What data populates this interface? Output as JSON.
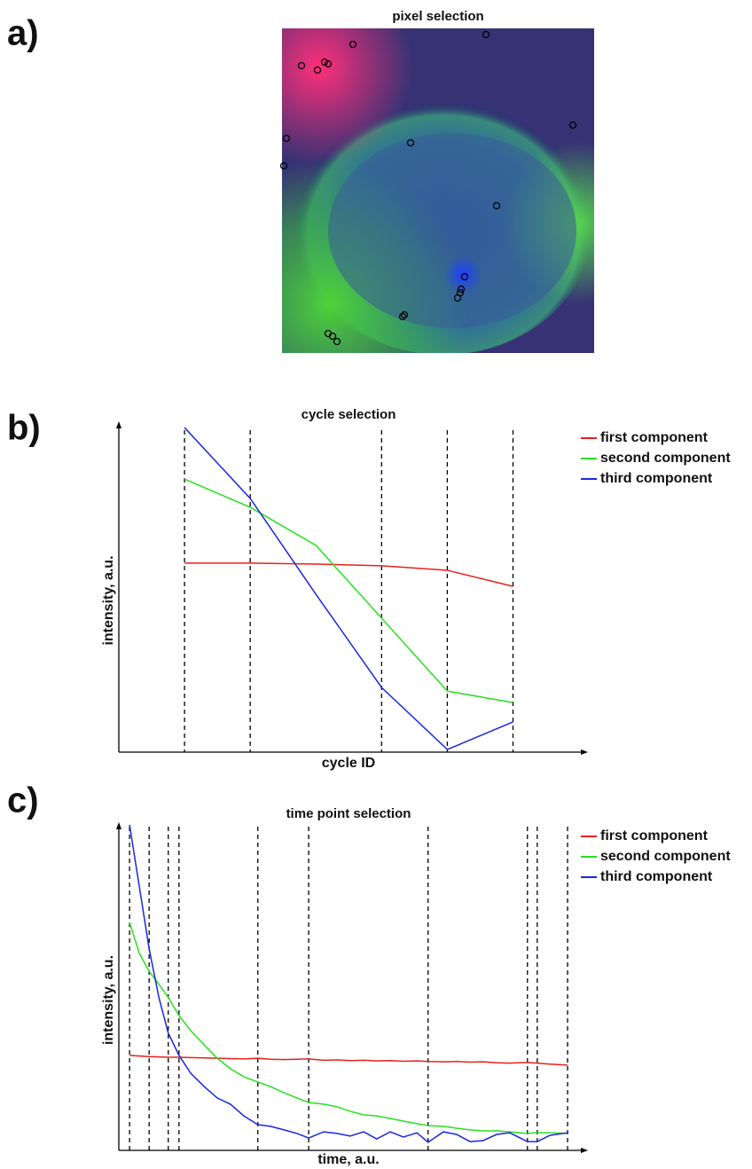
{
  "chart_data": [
    {
      "type": "scatter",
      "panel_label": "a)",
      "title": "pixel selection",
      "x": [
        22,
        40,
        48,
        52,
        80,
        230,
        328,
        5,
        2,
        145,
        242,
        206,
        202,
        201,
        198,
        138,
        136,
        52,
        57,
        62
      ],
      "y": [
        42,
        47,
        38,
        40,
        18,
        7,
        109,
        124,
        155,
        129,
        200,
        280,
        294,
        298,
        304,
        323,
        325,
        344,
        347,
        353
      ],
      "color": "#000000",
      "xlim": [
        0,
        352
      ],
      "ylim": [
        366,
        0
      ]
    },
    {
      "type": "line",
      "panel_label": "b)",
      "title": "cycle selection",
      "x_label": "cycle ID",
      "y_label": "intensity, a.u.",
      "x": [
        1,
        2,
        3,
        4,
        5,
        6
      ],
      "series": [
        {
          "name": "first component",
          "color": "#e8201c",
          "values": [
            0.576,
            0.576,
            0.573,
            0.568,
            0.554,
            0.505
          ]
        },
        {
          "name": "second component",
          "color": "#27e01f",
          "values": [
            0.832,
            0.746,
            0.63,
            0.408,
            0.186,
            0.151
          ]
        },
        {
          "name": "third component",
          "color": "#1a26e0",
          "values": [
            0.989,
            0.773,
            0.481,
            0.197,
            0.008,
            0.092
          ]
        }
      ],
      "selected": [
        1,
        2,
        4,
        5,
        6
      ],
      "xlim": [
        0,
        7.1
      ],
      "ylim": [
        0,
        1
      ],
      "legend": "right"
    },
    {
      "type": "line",
      "panel_label": "c)",
      "title": "time point selection",
      "x_label": "time, a.u.",
      "y_label": "intensity, a.u.",
      "x": [
        2.3,
        4.4,
        6.5,
        8.6,
        10.6,
        12.9,
        15.4,
        18.3,
        21.1,
        23.9,
        26.8,
        29.8,
        32.5,
        35.4,
        38.2,
        40.7,
        43.9,
        46.8,
        49.6,
        52.5,
        55.3,
        58.2,
        61.0,
        63.9,
        66.3,
        69.6,
        72.4,
        75.3,
        78.1,
        81.0,
        83.8,
        87.6,
        89.7,
        92.4,
        96.2
      ],
      "series": [
        {
          "name": "first component",
          "color": "#e8201c",
          "values": [
            0.292,
            0.29,
            0.288,
            0.287,
            0.286,
            0.286,
            0.285,
            0.284,
            0.283,
            0.282,
            0.281,
            0.283,
            0.28,
            0.279,
            0.28,
            0.281,
            0.277,
            0.278,
            0.276,
            0.277,
            0.275,
            0.276,
            0.274,
            0.275,
            0.273,
            0.272,
            0.273,
            0.271,
            0.272,
            0.269,
            0.268,
            0.27,
            0.268,
            0.265,
            0.262
          ]
        },
        {
          "name": "second component",
          "color": "#27e01f",
          "values": [
            0.7,
            0.605,
            0.55,
            0.51,
            0.47,
            0.414,
            0.368,
            0.324,
            0.283,
            0.251,
            0.226,
            0.21,
            0.196,
            0.177,
            0.161,
            0.147,
            0.142,
            0.134,
            0.12,
            0.109,
            0.106,
            0.098,
            0.09,
            0.082,
            0.076,
            0.074,
            0.068,
            0.063,
            0.06,
            0.06,
            0.057,
            0.052,
            0.054,
            0.054,
            0.052
          ]
        },
        {
          "name": "third component",
          "color": "#1a26e0",
          "values": [
            1.0,
            0.81,
            0.619,
            0.469,
            0.36,
            0.292,
            0.237,
            0.196,
            0.161,
            0.142,
            0.106,
            0.079,
            0.074,
            0.063,
            0.052,
            0.038,
            0.057,
            0.052,
            0.044,
            0.057,
            0.035,
            0.057,
            0.041,
            0.054,
            0.025,
            0.057,
            0.049,
            0.027,
            0.03,
            0.049,
            0.054,
            0.027,
            0.027,
            0.046,
            0.054
          ]
        }
      ],
      "selected": [
        2.3,
        6.5,
        10.6,
        12.9,
        29.8,
        40.7,
        66.3,
        87.6,
        89.7,
        96.2
      ],
      "xlim": [
        0,
        100
      ],
      "ylim": [
        0,
        1
      ],
      "legend": "right"
    }
  ]
}
